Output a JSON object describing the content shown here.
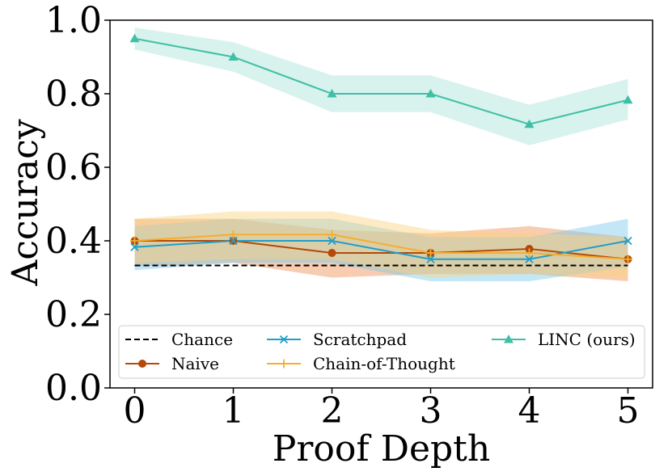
{
  "chart_data": {
    "type": "line",
    "xlabel": "Proof Depth",
    "ylabel": "Accuracy",
    "xlim": [
      -0.25,
      5.25
    ],
    "ylim": [
      0.0,
      1.0
    ],
    "x_ticks": [
      0,
      1,
      2,
      3,
      4,
      5
    ],
    "x_tick_labels": [
      "0",
      "1",
      "2",
      "3",
      "4",
      "5"
    ],
    "y_ticks": [
      0.0,
      0.2,
      0.4,
      0.6,
      0.8,
      1.0
    ],
    "y_tick_labels": [
      "0.0",
      "0.2",
      "0.4",
      "0.6",
      "0.8",
      "1.0"
    ],
    "grid": false,
    "legend_position": "bottom",
    "x": [
      0,
      1,
      2,
      3,
      4,
      5
    ],
    "series": [
      {
        "name": "Chance",
        "values": [
          0.333,
          0.333,
          0.333,
          0.333,
          0.333,
          0.333
        ],
        "color": "#000000",
        "style": "dashed",
        "marker": "none"
      },
      {
        "name": "Naive",
        "values": [
          0.4,
          0.4,
          0.367,
          0.367,
          0.378,
          0.35
        ],
        "lower": [
          0.33,
          0.34,
          0.3,
          0.31,
          0.31,
          0.29
        ],
        "upper": [
          0.46,
          0.46,
          0.43,
          0.42,
          0.44,
          0.41
        ],
        "color": "#b3490b",
        "band_color": "#ef8e4f",
        "marker": "circle"
      },
      {
        "name": "Scratchpad",
        "values": [
          0.383,
          0.4,
          0.4,
          0.35,
          0.35,
          0.4
        ],
        "lower": [
          0.32,
          0.34,
          0.34,
          0.29,
          0.29,
          0.33
        ],
        "upper": [
          0.44,
          0.46,
          0.46,
          0.41,
          0.41,
          0.46
        ],
        "color": "#1f9ec9",
        "band_color": "#79c9ea",
        "marker": "x"
      },
      {
        "name": "Chain-of-Thought",
        "values": [
          0.4,
          0.417,
          0.417,
          0.367,
          0.367,
          0.35
        ],
        "lower": [
          0.34,
          0.35,
          0.35,
          0.3,
          0.31,
          0.3
        ],
        "upper": [
          0.46,
          0.48,
          0.48,
          0.43,
          0.42,
          0.41
        ],
        "color": "#f5ae2b",
        "band_color": "#f9d27e",
        "marker": "plus"
      },
      {
        "name": "LINC (ours)",
        "values": [
          0.95,
          0.9,
          0.8,
          0.8,
          0.717,
          0.783
        ],
        "lower": [
          0.92,
          0.86,
          0.75,
          0.75,
          0.66,
          0.73
        ],
        "upper": [
          0.98,
          0.94,
          0.85,
          0.85,
          0.77,
          0.84
        ],
        "color": "#3fbfa6",
        "band_color": "#a8e2d6",
        "marker": "triangle"
      }
    ]
  }
}
